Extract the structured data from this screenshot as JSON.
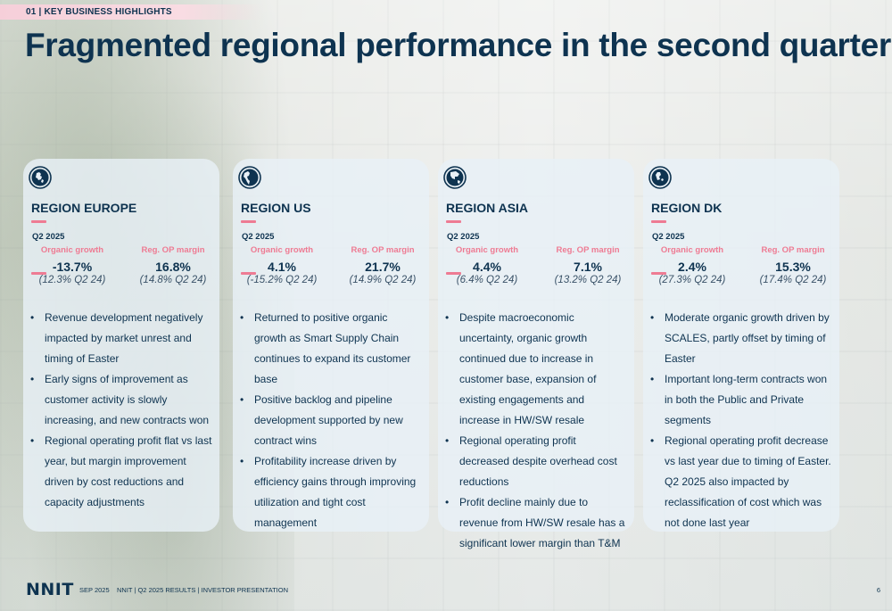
{
  "section_tag": "01 | KEY BUSINESS HIGHLIGHTS",
  "title": "Fragmented regional performance in the second quarter",
  "colors": {
    "navy": "#0e3350",
    "accent_pink": "#ee7b93",
    "card_bg": "#e8f0f6"
  },
  "regions": [
    {
      "name": "REGION EUROPE",
      "icon": "globe-europe-icon",
      "period": "Q2 2025",
      "organic_label": "Organic growth",
      "organic_value": "-13.7%",
      "organic_prev": "(12.3% Q2 24)",
      "margin_label": "Reg. OP margin",
      "margin_value": "16.8%",
      "margin_prev": "(14.8% Q2 24)",
      "bullets": [
        "Revenue development negatively impacted by market unrest and timing of Easter",
        "Early signs of improvement as customer activity is slowly increasing, and new contracts won",
        "Regional operating profit flat vs last year, but margin improvement driven by cost reductions and capacity adjustments"
      ]
    },
    {
      "name": "REGION US",
      "icon": "globe-americas-icon",
      "period": "Q2 2025",
      "organic_label": "Organic growth",
      "organic_value": "4.1%",
      "organic_prev": "(-15.2% Q2 24)",
      "margin_label": "Reg. OP margin",
      "margin_value": "21.7%",
      "margin_prev": "(14.9% Q2 24)",
      "bullets": [
        "Returned to positive organic growth as Smart Supply Chain continues to expand its customer base",
        "Positive backlog and pipeline development supported by new contract wins",
        "Profitability increase driven by efficiency gains through improving utilization and tight cost management"
      ]
    },
    {
      "name": "REGION ASIA",
      "icon": "globe-asia-icon",
      "period": "Q2 2025",
      "organic_label": "Organic growth",
      "organic_value": "4.4%",
      "organic_prev": "(6.4% Q2 24)",
      "margin_label": "Reg. OP margin",
      "margin_value": "7.1%",
      "margin_prev": "(13.2% Q2 24)",
      "bullets": [
        "Despite macroeconomic uncertainty, organic growth continued due to increase in customer base, expansion of existing engagements and increase in HW/SW resale",
        "Regional operating profit decreased despite overhead cost reductions",
        "Profit decline mainly due to revenue from HW/SW resale has a significant lower margin than T&M"
      ]
    },
    {
      "name": "REGION DK",
      "icon": "globe-denmark-icon",
      "period": "Q2 2025",
      "organic_label": "Organic growth",
      "organic_value": "2.4%",
      "organic_prev": "(27.3% Q2 24)",
      "margin_label": "Reg. OP margin",
      "margin_value": "15.3%",
      "margin_prev": "(17.4% Q2 24)",
      "bullets": [
        "Moderate organic growth driven by SCALES, partly offset by timing of Easter",
        "Important long-term contracts won in both the Public and Private segments",
        "Regional operating profit decrease vs last year due to timing of Easter. Q2 2025 also impacted by reclassification of cost which was not done last year"
      ]
    }
  ],
  "footer": {
    "logo": "NNIT",
    "date": "SEP 2025",
    "document": "NNIT | Q2 2025 RESULTS | INVESTOR PRESENTATION",
    "page": "6"
  }
}
